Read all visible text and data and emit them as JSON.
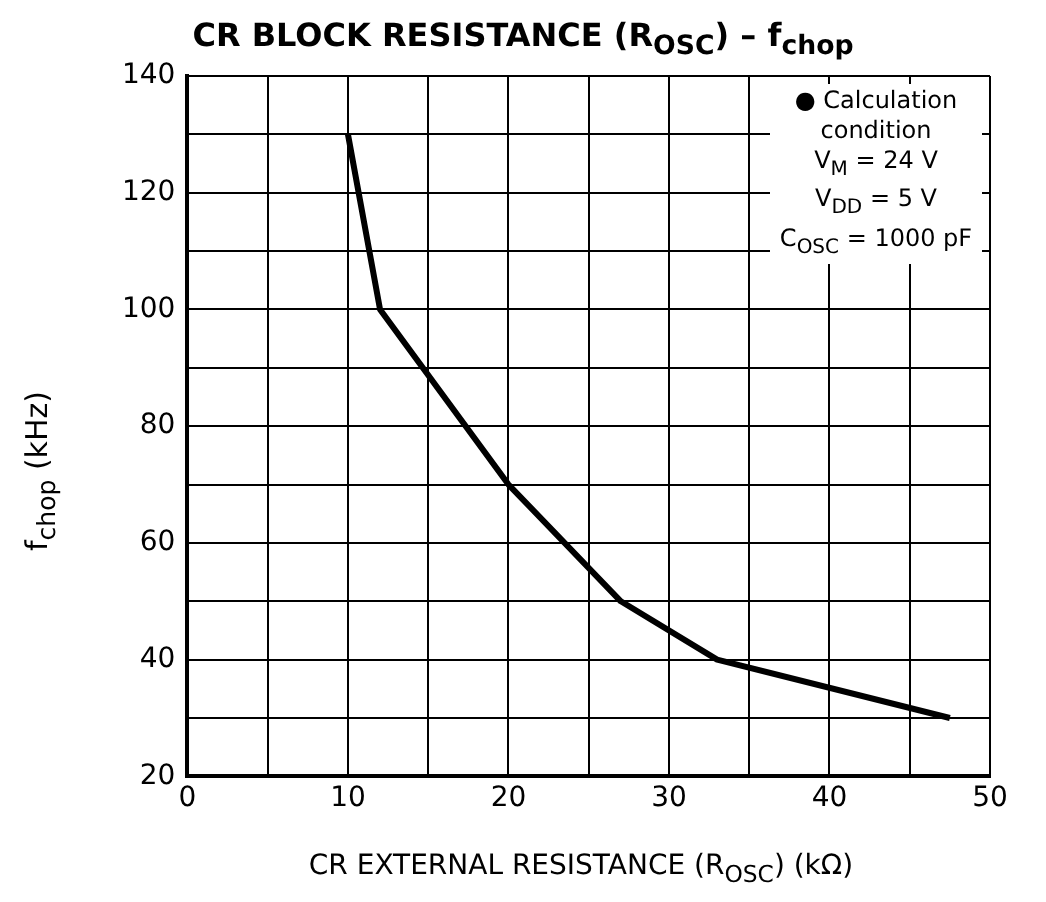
{
  "chart_data": {
    "type": "line",
    "title": "CR BLOCK RESISTANCE (R$_{OSC}$) – f$_{chop}$",
    "xlabel": "CR EXTERNAL RESISTANCE (R$_{OSC}$)   (kΩ)",
    "ylabel": "f$_{chop}$   (kHz)",
    "annotations": [
      "● Calculation condition",
      "V$_{M}$ = 24 V",
      "V$_{DD}$ = 5 V",
      "C$_{OSC}$ = 1000 pF"
    ],
    "series": [
      {
        "color": "#000000",
        "x": [
          10,
          12,
          20,
          27,
          33,
          47.5
        ],
        "values": [
          130,
          100,
          70,
          50,
          40,
          30
        ]
      }
    ],
    "xlim": [
      0,
      50
    ],
    "xticks": [
      0,
      {
        "value": 5,
        "label": null
      },
      10,
      {
        "value": 15,
        "label": null
      },
      20,
      {
        "value": 25,
        "label": null
      },
      30,
      {
        "value": 35,
        "label": null
      },
      40,
      {
        "value": 45,
        "label": null
      },
      50
    ],
    "ylim": [
      20,
      140
    ],
    "yticks": [
      20,
      {
        "value": 30,
        "label": null
      },
      40,
      {
        "value": 50,
        "label": null
      },
      60,
      {
        "value": 70,
        "label": null
      },
      80,
      {
        "value": 90,
        "label": null
      },
      100,
      {
        "value": 110,
        "label": null
      },
      120,
      {
        "value": 130,
        "label": null
      },
      140
    ],
    "grid": true,
    "legend": false,
    "marker": "none",
    "line_style": "solid"
  }
}
